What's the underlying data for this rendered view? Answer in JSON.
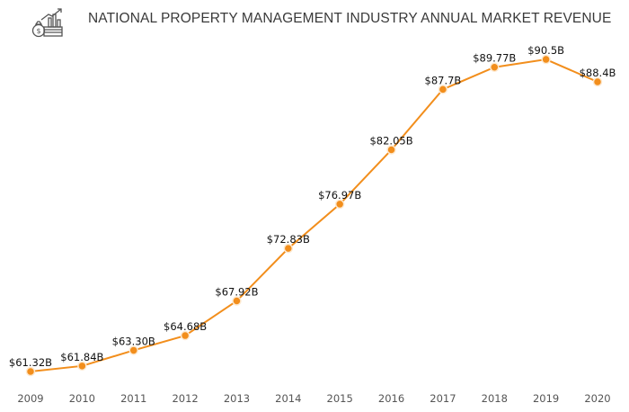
{
  "chart_data": {
    "type": "line",
    "title": "NATIONAL PROPERTY MANAGEMENT INDUSTRY ANNUAL MARKET REVENUE",
    "xlabel": "",
    "ylabel": "",
    "categories": [
      "2009",
      "2010",
      "2011",
      "2012",
      "2013",
      "2014",
      "2015",
      "2016",
      "2017",
      "2018",
      "2019",
      "2020"
    ],
    "values": [
      61.32,
      61.84,
      63.3,
      64.68,
      67.92,
      72.83,
      76.97,
      82.05,
      87.7,
      89.77,
      90.5,
      88.4
    ],
    "data_labels": [
      "$61.32B",
      "$61.84B",
      "$63.30B",
      "$64.68B",
      "$67.92B",
      "$72.83B",
      "$76.97B",
      "$82.05B",
      "$87.7B",
      "$89.77B",
      "$90.5B",
      "$88.4B"
    ],
    "grid": false,
    "legend": "none",
    "line_color": "#f28e1c",
    "marker_color": "#f28e1c"
  },
  "logo": {
    "icon": "money-bag-growth-chart-icon"
  }
}
